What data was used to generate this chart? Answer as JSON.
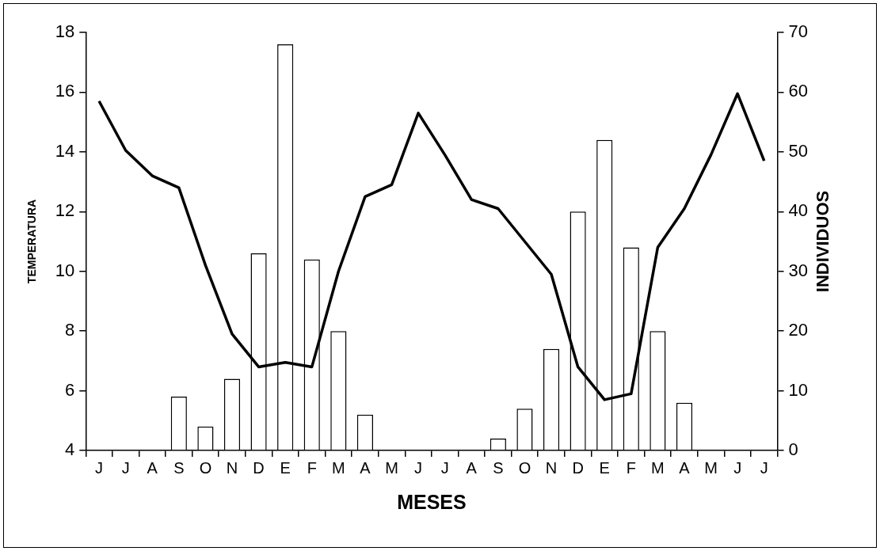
{
  "chart_data": {
    "type": "bar",
    "xlabel": "MESES",
    "ylabel": "TEMPERATURA",
    "y2label": "INDIVIDUOS",
    "categories": [
      "J",
      "J",
      "A",
      "S",
      "O",
      "N",
      "D",
      "E",
      "F",
      "M",
      "A",
      "M",
      "J",
      "J",
      "A",
      "S",
      "O",
      "N",
      "D",
      "E",
      "F",
      "M",
      "A",
      "M",
      "J",
      "J"
    ],
    "ylim": [
      4,
      18
    ],
    "yticks": [
      4,
      6,
      8,
      10,
      12,
      14,
      16,
      18
    ],
    "y2lim": [
      0,
      70
    ],
    "y2ticks": [
      0,
      10,
      20,
      30,
      40,
      50,
      60,
      70
    ],
    "series": [
      {
        "axis": "y2",
        "color": "#ffffff",
        "values": [
          null,
          null,
          null,
          9,
          4,
          12,
          33,
          68,
          32,
          20,
          6,
          null,
          null,
          null,
          null,
          2,
          7,
          17,
          40,
          52,
          34,
          20,
          8,
          null,
          null,
          null
        ]
      },
      {
        "type": "line",
        "axis": "y",
        "color": "#000000",
        "values": [
          15.7,
          14.05,
          13.2,
          12.8,
          10.2,
          7.9,
          6.8,
          6.95,
          6.8,
          10.0,
          12.5,
          12.9,
          15.3,
          13.9,
          12.4,
          12.1,
          11.0,
          9.9,
          6.8,
          5.7,
          5.9,
          10.8,
          12.1,
          13.9,
          15.95,
          13.7
        ]
      }
    ],
    "marker": "none",
    "line_style": "solid",
    "legend": false
  }
}
